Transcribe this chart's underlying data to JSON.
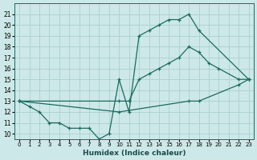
{
  "line1_x": [
    0,
    1,
    2,
    3,
    4,
    5,
    6,
    7,
    8,
    9,
    10,
    11,
    12,
    13,
    14,
    15,
    16,
    17,
    18,
    23
  ],
  "line1_y": [
    13,
    12.5,
    12,
    11,
    11,
    10.5,
    10.5,
    10.5,
    9.5,
    10,
    15,
    12,
    19,
    19.5,
    20,
    20.5,
    20.5,
    21,
    19.5,
    15
  ],
  "line2_x": [
    0,
    10,
    11,
    12,
    13,
    14,
    15,
    16,
    17,
    18,
    19,
    20,
    22,
    23
  ],
  "line2_y": [
    13,
    13,
    13,
    15,
    15.5,
    16,
    16.5,
    17,
    18,
    17.5,
    16.5,
    16,
    15,
    15
  ],
  "line3_x": [
    0,
    10,
    17,
    18,
    22,
    23
  ],
  "line3_y": [
    13,
    12,
    13,
    13,
    14.5,
    15
  ],
  "color": "#1a6b60",
  "bg_color": "#cde8e8",
  "grid_color": "#aad0d0",
  "xlabel": "Humidex (Indice chaleur)",
  "yticks": [
    10,
    11,
    12,
    13,
    14,
    15,
    16,
    17,
    18,
    19,
    20,
    21
  ],
  "xticks": [
    0,
    1,
    2,
    3,
    4,
    5,
    6,
    7,
    8,
    9,
    10,
    11,
    12,
    13,
    14,
    15,
    16,
    17,
    18,
    19,
    20,
    21,
    22,
    23
  ],
  "xlim": [
    -0.5,
    23.5
  ],
  "ylim": [
    9.5,
    22
  ]
}
